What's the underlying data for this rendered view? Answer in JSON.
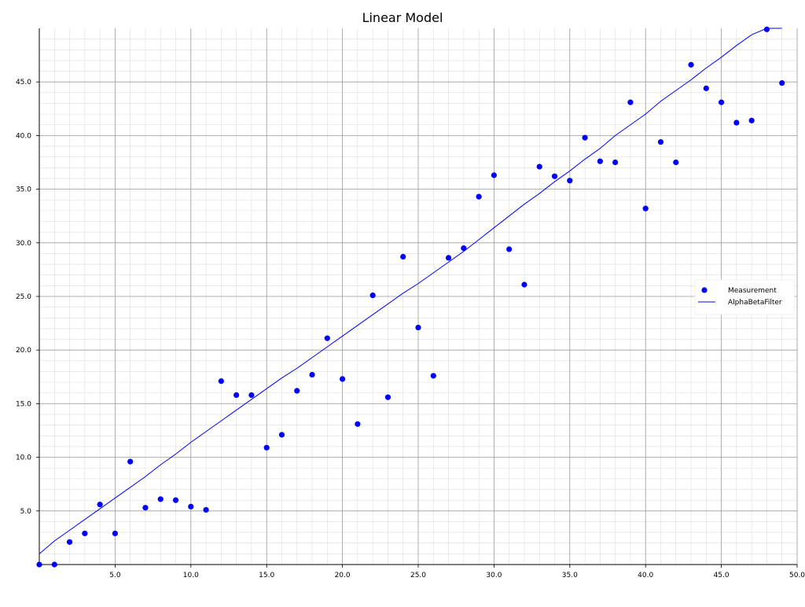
{
  "chart_data": {
    "type": "scatter",
    "title": "Linear Model",
    "xlabel": "",
    "ylabel": "",
    "xlim": [
      0,
      50
    ],
    "ylim": [
      0,
      50
    ],
    "x_ticks": [
      5,
      10,
      15,
      20,
      25,
      30,
      35,
      40,
      45,
      50
    ],
    "x_tick_labels": [
      "5.0",
      "10.0",
      "15.0",
      "20.0",
      "25.0",
      "30.0",
      "35.0",
      "40.0",
      "45.0",
      "50.0"
    ],
    "y_ticks": [
      5,
      10,
      15,
      20,
      25,
      30,
      35,
      40,
      45
    ],
    "y_tick_labels": [
      "5.0",
      "10.0",
      "15.0",
      "20.0",
      "25.0",
      "30.0",
      "35.0",
      "40.0",
      "45.0"
    ],
    "grid": true,
    "minor_grid": true,
    "legend_position": "right-middle",
    "series": [
      {
        "name": "Measurement",
        "kind": "scatter",
        "color": "#0000ff",
        "x": [
          0,
          1,
          2,
          3,
          4,
          5,
          6,
          7,
          8,
          9,
          10,
          11,
          12,
          13,
          14,
          15,
          16,
          17,
          18,
          19,
          20,
          21,
          22,
          23,
          24,
          25,
          26,
          27,
          28,
          29,
          30,
          31,
          32,
          33,
          34,
          35,
          36,
          37,
          38,
          39,
          40,
          41,
          42,
          43,
          44,
          45,
          46,
          47,
          48,
          49
        ],
        "y": [
          0.0,
          0.0,
          2.1,
          2.9,
          5.6,
          2.9,
          9.6,
          5.3,
          6.1,
          6.0,
          5.4,
          5.1,
          17.1,
          15.8,
          15.8,
          10.9,
          12.1,
          16.2,
          17.7,
          21.1,
          17.3,
          13.1,
          25.1,
          15.6,
          28.7,
          22.1,
          17.6,
          28.6,
          29.5,
          34.3,
          36.3,
          29.4,
          26.1,
          37.1,
          36.2,
          35.8,
          39.8,
          37.6,
          37.5,
          43.1,
          33.2,
          39.4,
          37.5,
          46.6,
          44.4,
          43.1,
          41.2,
          41.4,
          49.9,
          44.9
        ]
      },
      {
        "name": "AlphaBetaFilter",
        "kind": "line",
        "color": "#0000ff",
        "x": [
          0,
          1,
          2,
          3,
          4,
          5,
          6,
          7,
          8,
          9,
          10,
          11,
          12,
          13,
          14,
          15,
          16,
          17,
          18,
          19,
          20,
          21,
          22,
          23,
          24,
          25,
          26,
          27,
          28,
          29,
          30,
          31,
          32,
          33,
          34,
          35,
          36,
          37,
          38,
          39,
          40,
          41,
          42,
          43,
          44,
          45,
          46,
          47,
          48,
          49
        ],
        "y": [
          1.0,
          2.2,
          3.2,
          4.2,
          5.2,
          6.2,
          7.2,
          8.2,
          9.3,
          10.3,
          11.4,
          12.4,
          13.4,
          14.4,
          15.4,
          16.4,
          17.4,
          18.3,
          19.3,
          20.3,
          21.3,
          22.3,
          23.3,
          24.3,
          25.3,
          26.2,
          27.2,
          28.2,
          29.2,
          30.3,
          31.4,
          32.5,
          33.6,
          34.6,
          35.7,
          36.7,
          37.8,
          38.8,
          40.0,
          41.0,
          42.0,
          43.2,
          44.2,
          45.2,
          46.3,
          47.3,
          48.4,
          49.4,
          50.0,
          50.0
        ]
      }
    ]
  }
}
